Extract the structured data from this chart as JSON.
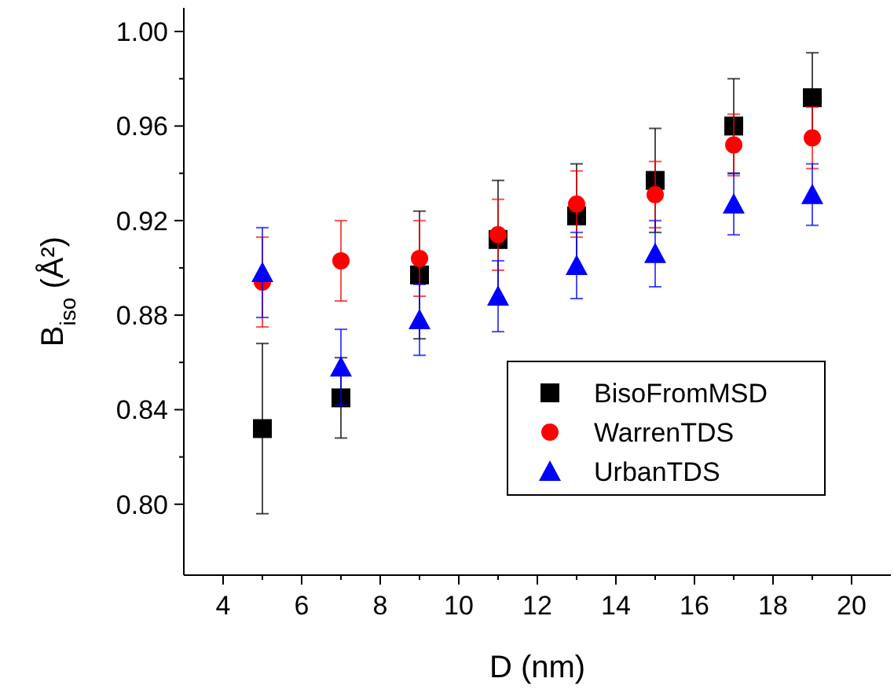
{
  "chart_data": {
    "type": "scatter",
    "xlabel": "D (nm)",
    "ylabel": "B$_{iso}$ (Å²)",
    "x": [
      5,
      7,
      9,
      11,
      13,
      15,
      17,
      19
    ],
    "xlim": [
      3,
      21
    ],
    "xticks": [
      4,
      6,
      8,
      10,
      12,
      14,
      16,
      18,
      20
    ],
    "ylim": [
      0.77,
      1.01
    ],
    "yticks": [
      {
        "value": 0.8,
        "label": "0.80"
      },
      0.84,
      0.88,
      0.92,
      0.96,
      {
        "value": 1.0,
        "label": "1.00"
      }
    ],
    "legend": "bottom right",
    "grid": false,
    "series": [
      {
        "name": "BisoFromMSD",
        "color": "#000000",
        "marker": "square",
        "values": [
          0.832,
          0.845,
          0.897,
          0.912,
          0.922,
          0.937,
          0.96,
          0.972
        ],
        "errors": [
          0.036,
          0.017,
          0.027,
          0.025,
          0.022,
          0.022,
          0.02,
          0.019
        ]
      },
      {
        "name": "WarrenTDS",
        "color": "#ff0000",
        "marker": "circle",
        "values": [
          0.894,
          0.903,
          0.904,
          0.914,
          0.927,
          0.931,
          0.952,
          0.955
        ],
        "errors": [
          0.019,
          0.017,
          0.016,
          0.015,
          0.014,
          0.014,
          0.013,
          0.013
        ]
      },
      {
        "name": "UrbanTDS",
        "color": "#0000ff",
        "marker": "triangle",
        "values": [
          0.898,
          0.858,
          0.878,
          0.888,
          0.901,
          0.906,
          0.927,
          0.931
        ],
        "errors": [
          0.019,
          0.016,
          0.015,
          0.015,
          0.014,
          0.014,
          0.013,
          0.013
        ]
      }
    ]
  }
}
